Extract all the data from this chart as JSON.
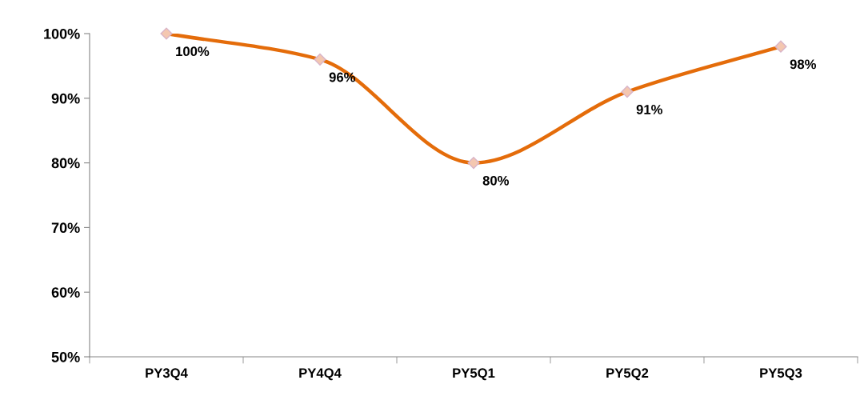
{
  "chart_data": {
    "type": "line",
    "categories": [
      "PY3Q4",
      "PY4Q4",
      "PY5Q1",
      "PY5Q2",
      "PY5Q3"
    ],
    "series": [
      {
        "color": "#e46c0a",
        "values": [
          100,
          96,
          80,
          91,
          98
        ],
        "value_labels": [
          "100%",
          "96%",
          "80%",
          "91%",
          "98%"
        ]
      }
    ],
    "ylim": [
      50,
      100
    ],
    "yticks": [
      {
        "value": 50,
        "label": "50%"
      },
      {
        "value": 60,
        "label": "60%"
      },
      {
        "value": 70,
        "label": "70%"
      },
      {
        "value": 80,
        "label": "80%"
      },
      {
        "value": 90,
        "label": "90%"
      },
      {
        "value": 100,
        "label": "100%"
      }
    ],
    "grid": false,
    "marker": "diamond",
    "line_style": "solid"
  }
}
